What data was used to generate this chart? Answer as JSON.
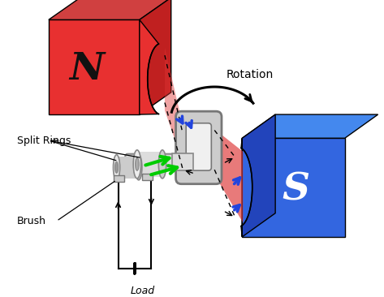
{
  "bg_color": "#ffffff",
  "north_color": "#e83030",
  "north_side": "#c02020",
  "north_top": "#d04040",
  "south_color": "#3366e0",
  "south_side": "#2244bb",
  "south_top": "#4488ee",
  "coil_color": "#cccccc",
  "coil_edge": "#777777",
  "shaft_color": "#dddddd",
  "green_arrow": "#00cc00",
  "blue_arrow": "#2244dd",
  "red_flux": "#dd3333",
  "N_label": "N",
  "S_label": "S",
  "rotation_label": "Rotation",
  "split_rings_label": "Split Rings",
  "brush_label": "Brush",
  "load_label": "Load"
}
